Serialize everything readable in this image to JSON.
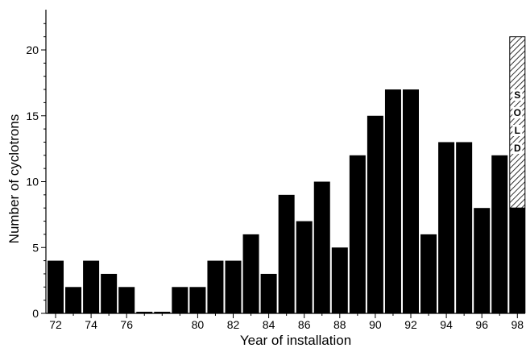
{
  "chart_data": {
    "type": "bar",
    "xlabel": "Year of installation",
    "ylabel": "Number of cyclotrons",
    "ylim": [
      0,
      23
    ],
    "yticks": [
      0,
      5,
      10,
      15,
      20
    ],
    "xtick_labels": [
      "72",
      "74",
      "76",
      "80",
      "82",
      "84",
      "86",
      "88",
      "90",
      "92",
      "94",
      "96",
      "98"
    ],
    "categories": [
      "72",
      "73",
      "74",
      "75",
      "76",
      "77",
      "78",
      "79",
      "80",
      "81",
      "82",
      "83",
      "84",
      "85",
      "86",
      "87",
      "88",
      "89",
      "90",
      "91",
      "92",
      "93",
      "94",
      "95",
      "96",
      "97",
      "98"
    ],
    "series": [
      {
        "values": [
          4,
          2,
          4,
          3,
          2,
          0,
          0,
          2,
          2,
          4,
          4,
          6,
          3,
          9,
          7,
          10,
          5,
          12,
          15,
          17,
          17,
          6,
          13,
          13,
          8,
          12,
          8
        ]
      },
      {
        "values": [
          0,
          0,
          0,
          0,
          0,
          0,
          0,
          0,
          0,
          0,
          0,
          0,
          0,
          0,
          0,
          0,
          0,
          0,
          0,
          0,
          0,
          0,
          0,
          0,
          0,
          0,
          13
        ]
      }
    ],
    "annotation": {
      "text": "SOLD",
      "category": "98"
    },
    "colors": {
      "bar": "#000000",
      "hatched": "#ffffff"
    },
    "grid": false,
    "legend": "none"
  }
}
